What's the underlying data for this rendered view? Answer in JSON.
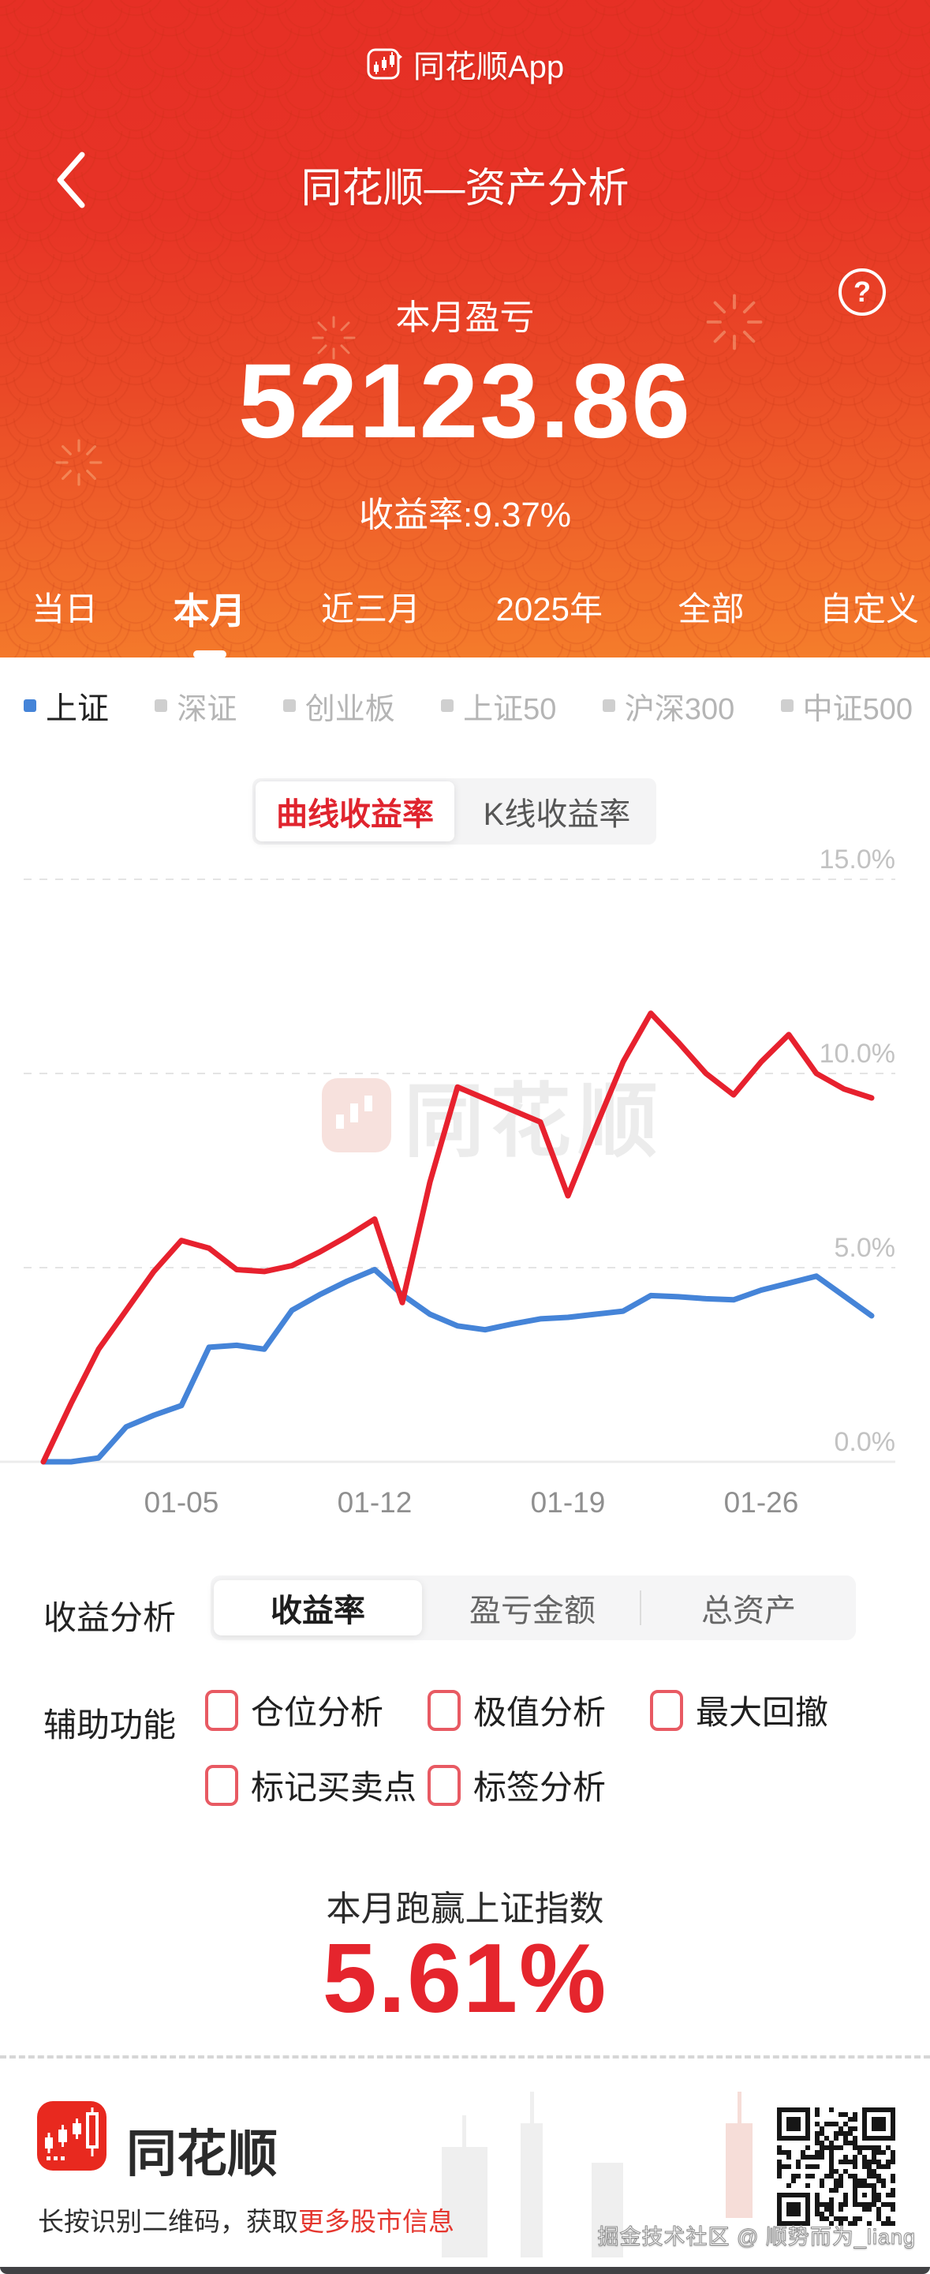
{
  "header": {
    "app_badge": "同花顺App",
    "nav_title": "同花顺—资产分析",
    "stat_label": "本月盈亏",
    "stat_value": "52123.86",
    "stat_sub": "收益率:9.37%",
    "help_icon": "?",
    "tabs": [
      {
        "label": "当日",
        "active": false
      },
      {
        "label": "本月",
        "active": true
      },
      {
        "label": "近三月",
        "active": false
      },
      {
        "label": "2025年",
        "active": false
      },
      {
        "label": "全部",
        "active": false
      },
      {
        "label": "自定义",
        "active": false
      }
    ]
  },
  "legend": [
    {
      "label": "上证",
      "marker_color": "#4584d8",
      "active": true
    },
    {
      "label": "深证",
      "marker_color": "#cfcfcf",
      "active": false
    },
    {
      "label": "创业板",
      "marker_color": "#cfcfcf",
      "active": false
    },
    {
      "label": "上证50",
      "marker_color": "#cfcfcf",
      "active": false
    },
    {
      "label": "沪深300",
      "marker_color": "#cfcfcf",
      "active": false
    },
    {
      "label": "中证500",
      "marker_color": "#cfcfcf",
      "active": false
    }
  ],
  "curve_toggle": {
    "options": [
      "曲线收益率",
      "K线收益率"
    ],
    "selected": 0
  },
  "chart_data": {
    "type": "line",
    "x": [
      "12-31",
      "01-01",
      "01-02",
      "01-03",
      "01-04",
      "01-05",
      "01-06",
      "01-07",
      "01-08",
      "01-09",
      "01-10",
      "01-11",
      "01-12",
      "01-13",
      "01-14",
      "01-15",
      "01-16",
      "01-17",
      "01-18",
      "01-19",
      "01-20",
      "01-21",
      "01-22",
      "01-23",
      "01-24",
      "01-25",
      "01-26",
      "01-27",
      "01-28",
      "01-29",
      "01-30"
    ],
    "series": [
      {
        "name": "上证",
        "color": "#4584d8",
        "values": [
          0,
          0,
          0.1,
          0.9,
          1.2,
          1.45,
          2.95,
          3.0,
          2.9,
          3.9,
          4.3,
          4.65,
          4.95,
          4.3,
          3.8,
          3.5,
          3.4,
          3.55,
          3.68,
          3.72,
          3.8,
          3.88,
          4.28,
          4.25,
          4.2,
          4.17,
          4.42,
          4.6,
          4.78,
          4.27,
          3.76
        ]
      },
      {
        "name": "收益率",
        "color": "#e7212e",
        "values": [
          0,
          1.5,
          2.9,
          3.9,
          4.9,
          5.7,
          5.5,
          4.95,
          4.9,
          5.05,
          5.4,
          5.8,
          6.25,
          4.1,
          7.2,
          9.65,
          9.35,
          9.05,
          8.75,
          6.85,
          8.6,
          10.3,
          11.55,
          10.8,
          10.0,
          9.45,
          10.3,
          11.0,
          10.0,
          9.6,
          9.37
        ]
      }
    ],
    "ylim": [
      0,
      15
    ],
    "ytick_values": [
      0,
      5,
      10,
      15
    ],
    "ytick_labels": [
      "0.0%",
      "5.0%",
      "10.0%",
      "15.0%"
    ],
    "xtick_dates": [
      "01-05",
      "01-12",
      "01-19",
      "01-26"
    ],
    "grid": "horizontal-dashed",
    "legend_position": "top-row-of-page",
    "watermark_text": "同花顺"
  },
  "analysis": {
    "label": "收益分析",
    "options": [
      "收益率",
      "盈亏金额",
      "总资产"
    ],
    "selected": 0
  },
  "aux": {
    "label": "辅助功能",
    "checkboxes": [
      {
        "label": "仓位分析",
        "checked": false
      },
      {
        "label": "极值分析",
        "checked": false
      },
      {
        "label": "最大回撤",
        "checked": false
      },
      {
        "label": "标记买卖点",
        "checked": false
      },
      {
        "label": "标签分析",
        "checked": false
      }
    ]
  },
  "outperform": {
    "title": "本月跑赢上证指数",
    "value": "5.61%"
  },
  "footer": {
    "brand": "同花顺",
    "caption_prefix": "长按识别二维码，获取",
    "caption_link": "更多股市信息",
    "watermark": "掘金技术社区 @ 顺势而为_liang"
  },
  "colors": {
    "hero_top": "#e62f25",
    "hero_bottom": "#f57e2b",
    "accent_red": "#e5252d",
    "line_red": "#e7212e",
    "line_blue": "#4584d8",
    "checkbox_border": "#e85a63",
    "grid_line": "#e4e4e4",
    "axis_label": "#c2c2c2",
    "xaxis_label": "#8f8f8f"
  }
}
